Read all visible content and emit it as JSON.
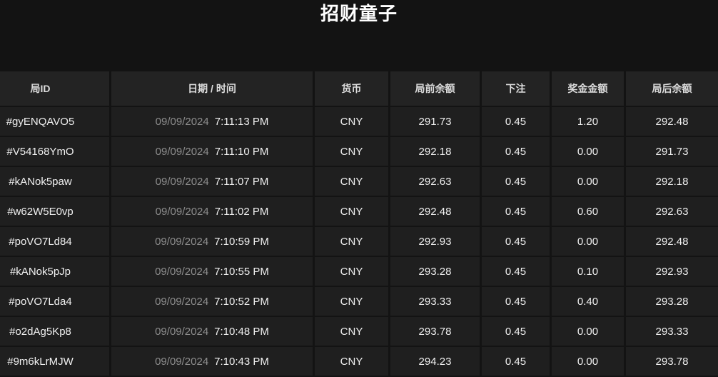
{
  "page": {
    "title": "招财童子"
  },
  "colors": {
    "page_bg": "#131313",
    "cell_bg": "#1f1f1f",
    "header_bg": "#232323",
    "title_color": "#ffffff",
    "header_text": "#dddddd",
    "cell_text": "#f0f0f0",
    "id_text": "#e3e3e3",
    "date_text": "#8d8d8d",
    "time_text": "#f0f0f0"
  },
  "table": {
    "columns": [
      {
        "key": "round_id",
        "label": "局ID"
      },
      {
        "key": "datetime",
        "label": "日期 / 时间"
      },
      {
        "key": "currency",
        "label": "货币"
      },
      {
        "key": "balance_before",
        "label": "局前余额"
      },
      {
        "key": "bet",
        "label": "下注"
      },
      {
        "key": "prize",
        "label": "奖金金额"
      },
      {
        "key": "balance_after",
        "label": "局后余额"
      }
    ],
    "rows": [
      {
        "round_id": "#gyENQAVO5",
        "date": "09/09/2024",
        "time": "7:11:13 PM",
        "currency": "CNY",
        "balance_before": "291.73",
        "bet": "0.45",
        "prize": "1.20",
        "balance_after": "292.48"
      },
      {
        "round_id": "#V54168YmO",
        "date": "09/09/2024",
        "time": "7:11:10 PM",
        "currency": "CNY",
        "balance_before": "292.18",
        "bet": "0.45",
        "prize": "0.00",
        "balance_after": "291.73"
      },
      {
        "round_id": "#kANok5paw",
        "date": "09/09/2024",
        "time": "7:11:07 PM",
        "currency": "CNY",
        "balance_before": "292.63",
        "bet": "0.45",
        "prize": "0.00",
        "balance_after": "292.18"
      },
      {
        "round_id": "#w62W5E0vp",
        "date": "09/09/2024",
        "time": "7:11:02 PM",
        "currency": "CNY",
        "balance_before": "292.48",
        "bet": "0.45",
        "prize": "0.60",
        "balance_after": "292.63"
      },
      {
        "round_id": "#poVO7Ld84",
        "date": "09/09/2024",
        "time": "7:10:59 PM",
        "currency": "CNY",
        "balance_before": "292.93",
        "bet": "0.45",
        "prize": "0.00",
        "balance_after": "292.48"
      },
      {
        "round_id": "#kANok5pJp",
        "date": "09/09/2024",
        "time": "7:10:55 PM",
        "currency": "CNY",
        "balance_before": "293.28",
        "bet": "0.45",
        "prize": "0.10",
        "balance_after": "292.93"
      },
      {
        "round_id": "#poVO7Lda4",
        "date": "09/09/2024",
        "time": "7:10:52 PM",
        "currency": "CNY",
        "balance_before": "293.33",
        "bet": "0.45",
        "prize": "0.40",
        "balance_after": "293.28"
      },
      {
        "round_id": "#o2dAg5Kp8",
        "date": "09/09/2024",
        "time": "7:10:48 PM",
        "currency": "CNY",
        "balance_before": "293.78",
        "bet": "0.45",
        "prize": "0.00",
        "balance_after": "293.33"
      },
      {
        "round_id": "#9m6kLrMJW",
        "date": "09/09/2024",
        "time": "7:10:43 PM",
        "currency": "CNY",
        "balance_before": "294.23",
        "bet": "0.45",
        "prize": "0.00",
        "balance_after": "293.78"
      }
    ]
  }
}
